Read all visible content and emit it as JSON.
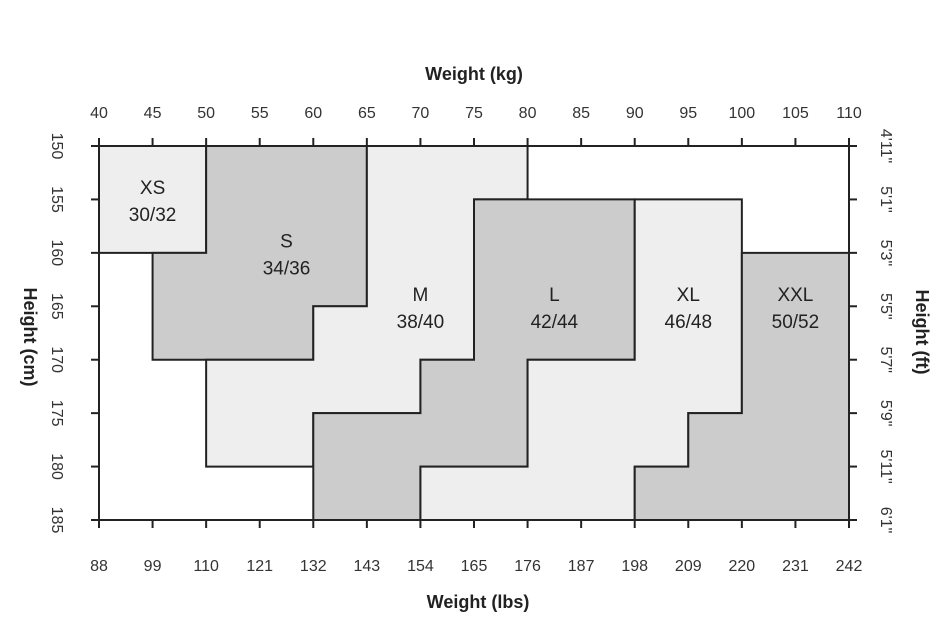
{
  "chart_data": {
    "type": "heatmap",
    "title": "",
    "top_axis": {
      "label": "Weight (kg)",
      "ticks": [
        "40",
        "45",
        "50",
        "55",
        "60",
        "65",
        "70",
        "75",
        "80",
        "85",
        "90",
        "95",
        "100",
        "105",
        "110"
      ],
      "range": [
        40,
        110
      ]
    },
    "bottom_axis": {
      "label": "Weight (lbs)",
      "ticks": [
        "88",
        "99",
        "110",
        "121",
        "132",
        "143",
        "154",
        "165",
        "176",
        "187",
        "198",
        "209",
        "220",
        "231",
        "242"
      ]
    },
    "left_axis": {
      "label": "Height (cm)",
      "ticks": [
        "150",
        "155",
        "160",
        "165",
        "170",
        "175",
        "180",
        "185"
      ],
      "range": [
        150,
        185
      ]
    },
    "right_axis": {
      "label": "Height (ft)",
      "ticks": [
        "4'11\"",
        "5'1\"",
        "5'3\"",
        "5'5\"",
        "5'7\"",
        "5'9\"",
        "5'11\"",
        "6'1\""
      ]
    },
    "colors": {
      "light": "#eeeeee",
      "dark": "#cccccc",
      "stroke": "#222222",
      "background": "#ffffff"
    },
    "zones": [
      {
        "size": "XS",
        "eu": "30/32",
        "fill": "light",
        "polygon": [
          [
            40,
            150
          ],
          [
            50,
            150
          ],
          [
            50,
            160
          ],
          [
            40,
            160
          ]
        ],
        "label_at": [
          45,
          154.5
        ]
      },
      {
        "size": "S",
        "eu": "34/36",
        "fill": "dark",
        "polygon": [
          [
            50,
            150
          ],
          [
            65,
            150
          ],
          [
            65,
            165
          ],
          [
            60,
            165
          ],
          [
            60,
            170
          ],
          [
            45,
            170
          ],
          [
            45,
            160
          ],
          [
            50,
            160
          ]
        ],
        "label_at": [
          57.5,
          159.5
        ]
      },
      {
        "size": "M",
        "eu": "38/40",
        "fill": "light",
        "polygon": [
          [
            65,
            150
          ],
          [
            80,
            150
          ],
          [
            80,
            155
          ],
          [
            75,
            155
          ],
          [
            75,
            170
          ],
          [
            70,
            170
          ],
          [
            70,
            175
          ],
          [
            60,
            175
          ],
          [
            60,
            180
          ],
          [
            50,
            180
          ],
          [
            50,
            170
          ],
          [
            60,
            170
          ],
          [
            60,
            165
          ],
          [
            65,
            165
          ]
        ],
        "label_at": [
          70,
          164.5
        ]
      },
      {
        "size": "L",
        "eu": "42/44",
        "fill": "dark",
        "polygon": [
          [
            75,
            155
          ],
          [
            90,
            155
          ],
          [
            90,
            170
          ],
          [
            80,
            170
          ],
          [
            80,
            180
          ],
          [
            70,
            180
          ],
          [
            70,
            185
          ],
          [
            60,
            185
          ],
          [
            60,
            175
          ],
          [
            70,
            175
          ],
          [
            70,
            170
          ],
          [
            75,
            170
          ]
        ],
        "label_at": [
          82.5,
          164.5
        ]
      },
      {
        "size": "XL",
        "eu": "46/48",
        "fill": "light",
        "polygon": [
          [
            90,
            155
          ],
          [
            100,
            155
          ],
          [
            100,
            160
          ],
          [
            100,
            175
          ],
          [
            95,
            175
          ],
          [
            95,
            180
          ],
          [
            90,
            180
          ],
          [
            90,
            185
          ],
          [
            70,
            185
          ],
          [
            70,
            180
          ],
          [
            80,
            180
          ],
          [
            80,
            170
          ],
          [
            90,
            170
          ]
        ],
        "label_at": [
          95,
          164.5
        ]
      },
      {
        "size": "XXL",
        "eu": "50/52",
        "fill": "dark",
        "polygon": [
          [
            100,
            160
          ],
          [
            110,
            160
          ],
          [
            110,
            185
          ],
          [
            90,
            185
          ],
          [
            90,
            180
          ],
          [
            95,
            180
          ],
          [
            95,
            175
          ],
          [
            100,
            175
          ]
        ],
        "label_at": [
          105,
          164.5
        ]
      }
    ]
  }
}
